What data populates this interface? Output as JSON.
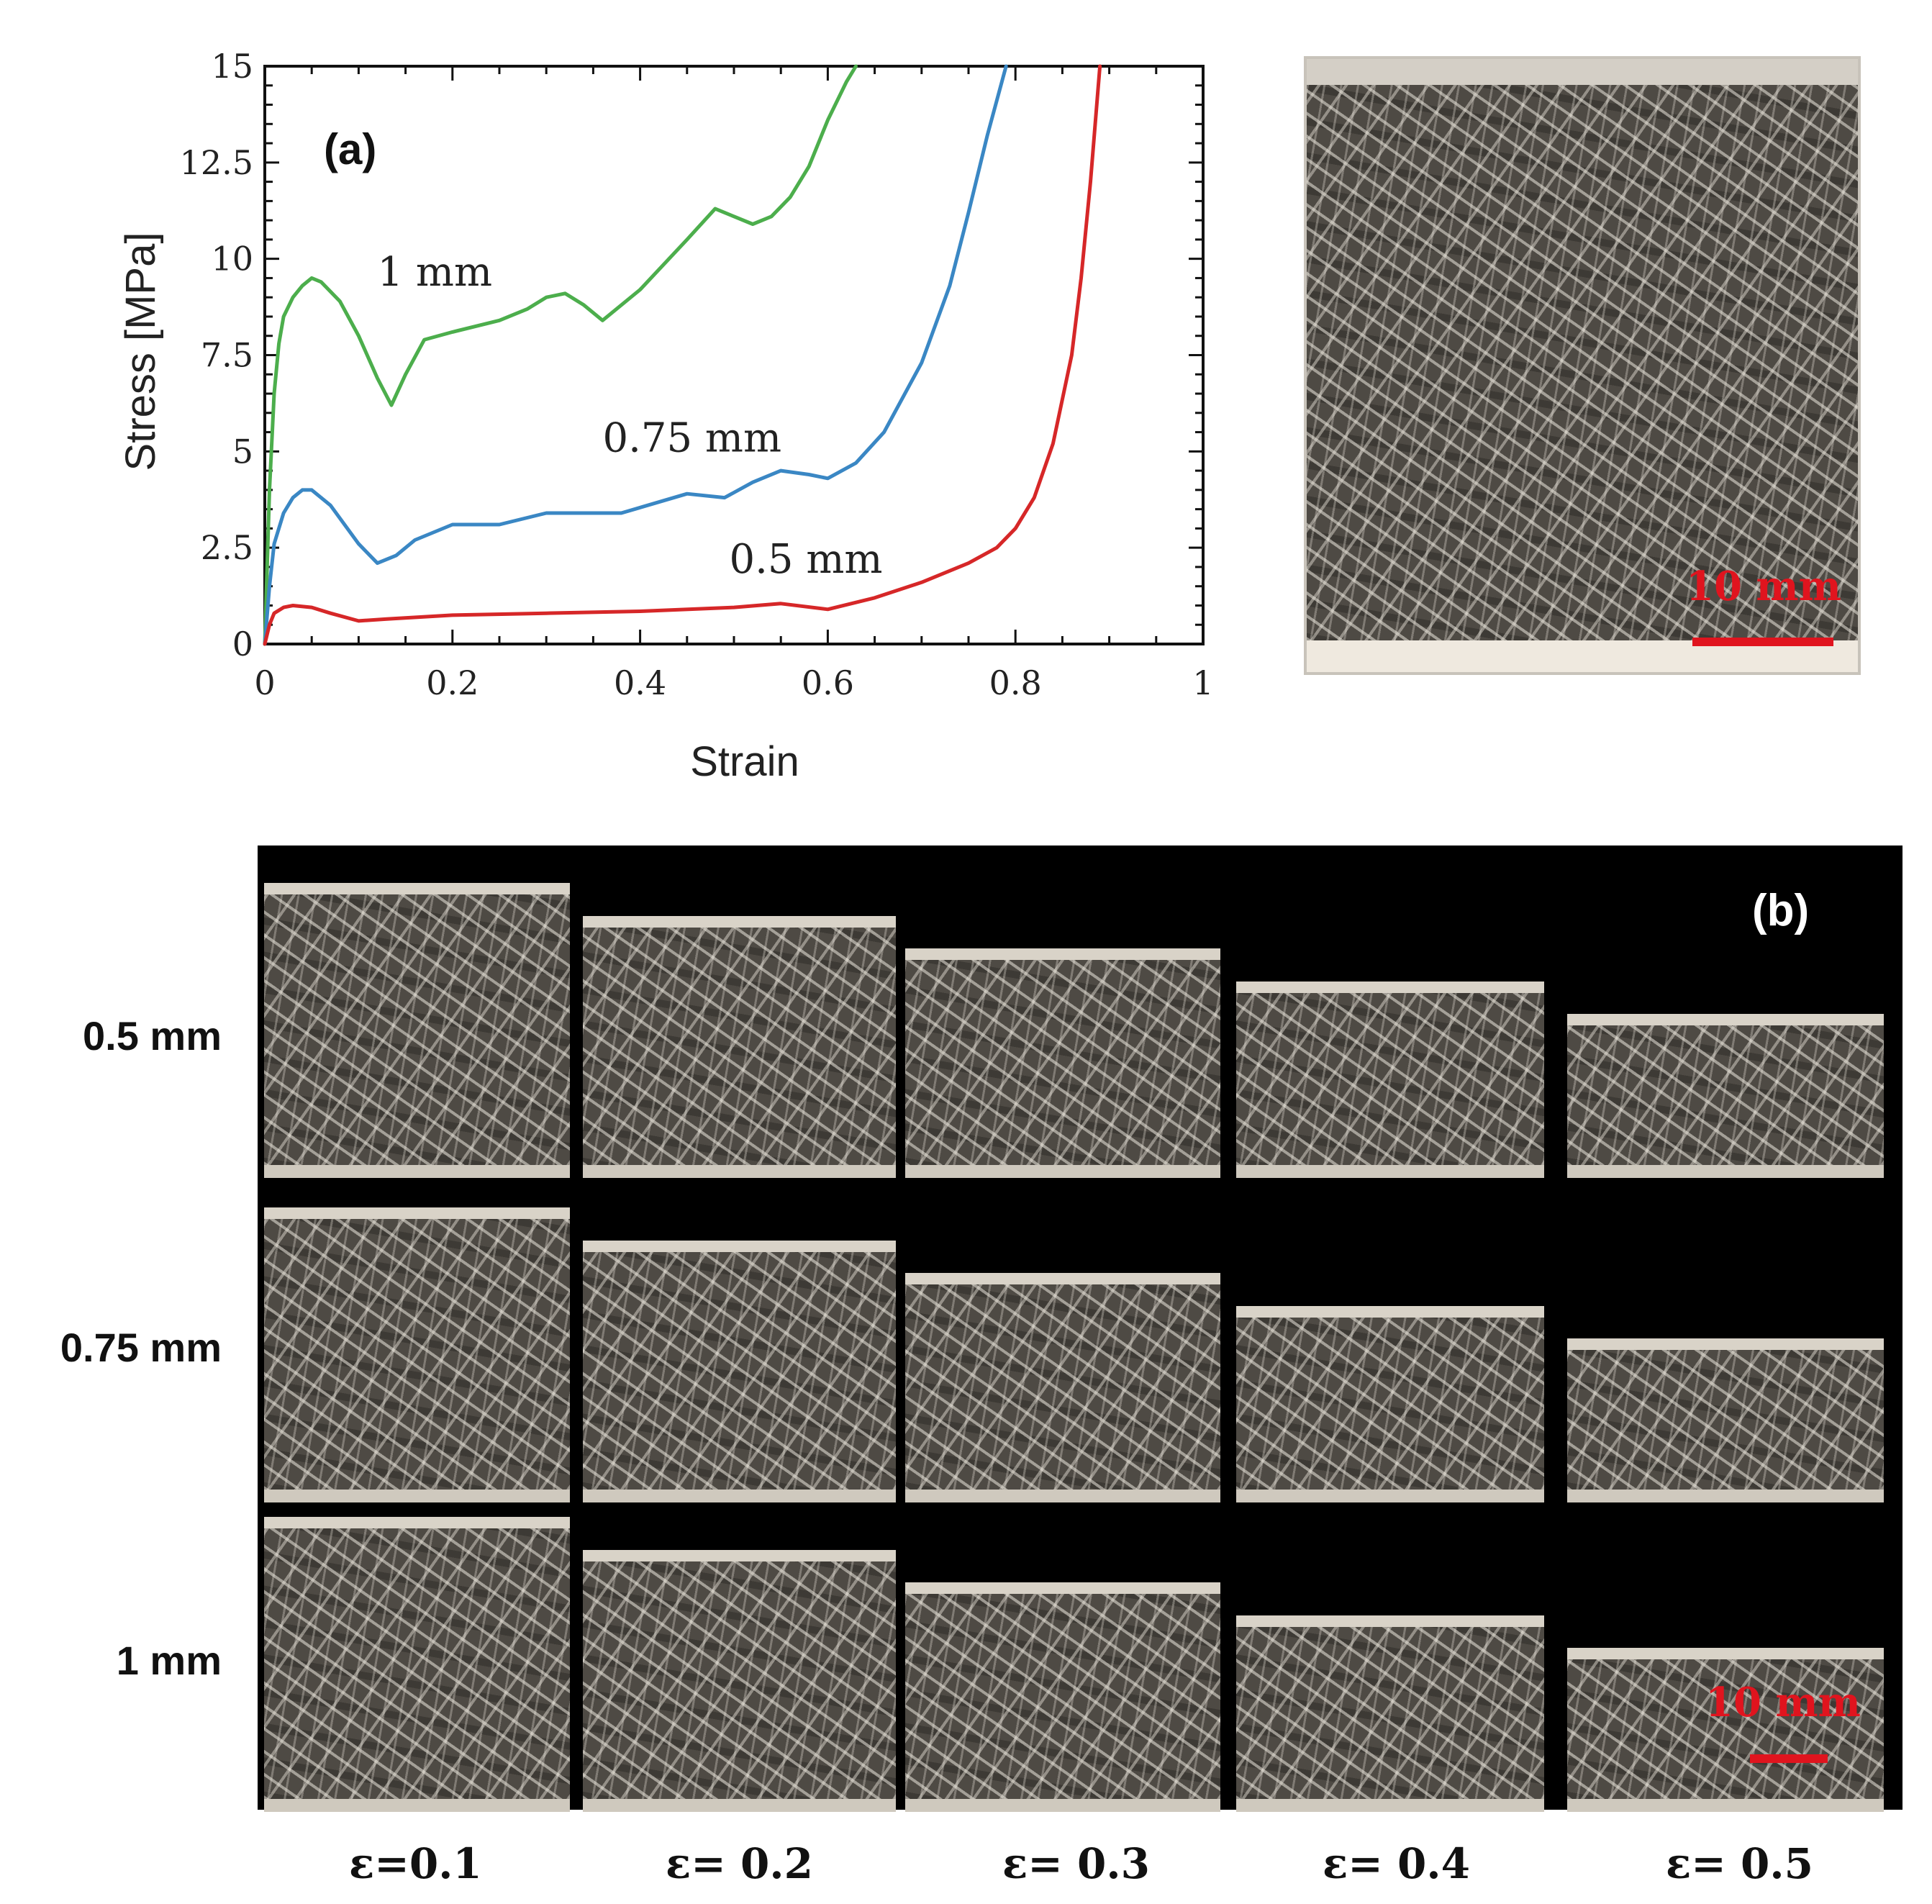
{
  "chart_data": {
    "type": "line",
    "panel_tag": "(a)",
    "xlabel": "Strain",
    "ylabel": "Stress [MPa]",
    "xlim": [
      0,
      1
    ],
    "ylim": [
      0,
      15
    ],
    "x_ticks": [
      "0",
      "0.2",
      "0.4",
      "0.6",
      "0.8",
      "1"
    ],
    "y_ticks": [
      "0",
      "2.5",
      "5",
      "7.5",
      "10",
      "12.5",
      "15"
    ],
    "grid": false,
    "series": [
      {
        "name": "1 mm",
        "color": "#4cae4c",
        "x": [
          0,
          0.005,
          0.01,
          0.015,
          0.02,
          0.03,
          0.04,
          0.05,
          0.06,
          0.08,
          0.1,
          0.12,
          0.135,
          0.15,
          0.17,
          0.2,
          0.25,
          0.28,
          0.3,
          0.32,
          0.34,
          0.36,
          0.4,
          0.45,
          0.48,
          0.5,
          0.52,
          0.54,
          0.56,
          0.58,
          0.6,
          0.62,
          0.63
        ],
        "y": [
          0,
          4.0,
          6.5,
          7.8,
          8.5,
          9.0,
          9.3,
          9.5,
          9.4,
          8.9,
          8.0,
          6.9,
          6.2,
          7.0,
          7.9,
          8.1,
          8.4,
          8.7,
          9.0,
          9.1,
          8.8,
          8.4,
          9.2,
          10.5,
          11.3,
          11.1,
          10.9,
          11.1,
          11.6,
          12.4,
          13.6,
          14.6,
          15.0
        ]
      },
      {
        "name": "0.75 mm",
        "color": "#3a87c4",
        "x": [
          0,
          0.005,
          0.01,
          0.02,
          0.03,
          0.04,
          0.05,
          0.07,
          0.1,
          0.12,
          0.14,
          0.16,
          0.2,
          0.25,
          0.3,
          0.33,
          0.38,
          0.45,
          0.49,
          0.52,
          0.55,
          0.58,
          0.6,
          0.63,
          0.66,
          0.7,
          0.73,
          0.75,
          0.77,
          0.79
        ],
        "y": [
          0,
          1.5,
          2.6,
          3.4,
          3.8,
          4.0,
          4.0,
          3.6,
          2.6,
          2.1,
          2.3,
          2.7,
          3.1,
          3.1,
          3.4,
          3.4,
          3.4,
          3.9,
          3.8,
          4.2,
          4.5,
          4.4,
          4.3,
          4.7,
          5.5,
          7.3,
          9.3,
          11.2,
          13.2,
          15.0
        ]
      },
      {
        "name": "0.5 mm",
        "color": "#d62728",
        "x": [
          0,
          0.005,
          0.01,
          0.02,
          0.03,
          0.05,
          0.07,
          0.1,
          0.13,
          0.2,
          0.3,
          0.4,
          0.5,
          0.55,
          0.6,
          0.65,
          0.7,
          0.75,
          0.78,
          0.8,
          0.82,
          0.84,
          0.86,
          0.87,
          0.88,
          0.89
        ],
        "y": [
          0,
          0.5,
          0.8,
          0.95,
          1.0,
          0.95,
          0.8,
          0.6,
          0.65,
          0.75,
          0.8,
          0.85,
          0.95,
          1.05,
          0.9,
          1.2,
          1.6,
          2.1,
          2.5,
          3.0,
          3.8,
          5.2,
          7.5,
          9.5,
          12.0,
          15.0
        ]
      }
    ],
    "annotations": [
      {
        "text": "1 mm",
        "x": 0.12,
        "y": 9.3
      },
      {
        "text": "0.75 mm",
        "x": 0.36,
        "y": 5.0
      },
      {
        "text": "0.5 mm",
        "x": 0.495,
        "y": 1.85
      }
    ]
  },
  "photo_a": {
    "scale_label": "10 mm"
  },
  "panel_b": {
    "tag": "(b)",
    "rows": [
      "0.5 mm",
      "0.75 mm",
      "1 mm"
    ],
    "columns": [
      "ε=0.1",
      "ε= 0.2",
      "ε= 0.3",
      "ε= 0.4",
      "ε= 0.5"
    ],
    "strains": [
      0.1,
      0.2,
      0.3,
      0.4,
      0.5
    ],
    "scale_label": "10 mm"
  }
}
